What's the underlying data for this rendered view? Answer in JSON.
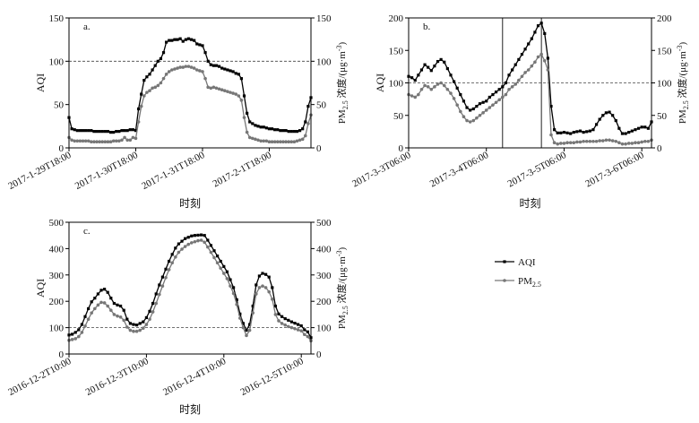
{
  "chart_data": [
    {
      "panel": "a.",
      "type": "line",
      "xlabel": "时刻",
      "ylabel_left": "AQI",
      "ylabel_right": "PM_2.5 浓度/(μg·m^-3)",
      "ylim": [
        0,
        150
      ],
      "yticks": [
        0,
        50,
        100,
        150
      ],
      "reference_line": 100,
      "x_tick_labels": [
        "2017-1-29T18:00",
        "2017-1-30T18:00",
        "2017-1-31T18:00",
        "2017-2-1T18:00"
      ],
      "x_tick_positions": [
        0,
        24,
        48,
        72
      ],
      "x_range": [
        0,
        87
      ],
      "series": [
        {
          "name": "AQI",
          "color": "#000000",
          "marker": "square",
          "x": [
            0,
            1,
            2,
            3,
            4,
            5,
            6,
            7,
            8,
            9,
            10,
            11,
            12,
            13,
            14,
            15,
            16,
            17,
            18,
            19,
            20,
            21,
            22,
            23,
            24,
            25,
            26,
            27,
            28,
            29,
            30,
            31,
            32,
            33,
            34,
            35,
            36,
            37,
            38,
            39,
            40,
            41,
            42,
            43,
            44,
            45,
            46,
            47,
            48,
            49,
            50,
            51,
            52,
            53,
            54,
            55,
            56,
            57,
            58,
            59,
            60,
            61,
            62,
            63,
            64,
            65,
            66,
            67,
            68,
            69,
            70,
            71,
            72,
            73,
            74,
            75,
            76,
            77,
            78,
            79,
            80,
            81,
            82,
            83,
            84,
            85,
            86,
            87
          ],
          "y": [
            35,
            22,
            21,
            20,
            20,
            20,
            20,
            20,
            20,
            19,
            19,
            19,
            19,
            19,
            19,
            18,
            18,
            19,
            19,
            20,
            20,
            20,
            21,
            21,
            20,
            45,
            62,
            78,
            82,
            85,
            90,
            95,
            100,
            103,
            110,
            122,
            124,
            124,
            125,
            125,
            126,
            123,
            125,
            126,
            125,
            124,
            120,
            119,
            118,
            110,
            100,
            96,
            95,
            95,
            94,
            92,
            91,
            90,
            89,
            88,
            86,
            85,
            80,
            60,
            40,
            30,
            28,
            26,
            25,
            24,
            24,
            23,
            22,
            22,
            21,
            21,
            20,
            20,
            20,
            19,
            19,
            19,
            19,
            20,
            22,
            30,
            48,
            58
          ]
        },
        {
          "name": "PM2.5",
          "color": "#777777",
          "marker": "circle",
          "x": [
            0,
            1,
            2,
            3,
            4,
            5,
            6,
            7,
            8,
            9,
            10,
            11,
            12,
            13,
            14,
            15,
            16,
            17,
            18,
            19,
            20,
            21,
            22,
            23,
            24,
            25,
            26,
            27,
            28,
            29,
            30,
            31,
            32,
            33,
            34,
            35,
            36,
            37,
            38,
            39,
            40,
            41,
            42,
            43,
            44,
            45,
            46,
            47,
            48,
            49,
            50,
            51,
            52,
            53,
            54,
            55,
            56,
            57,
            58,
            59,
            60,
            61,
            62,
            63,
            64,
            65,
            66,
            67,
            68,
            69,
            70,
            71,
            72,
            73,
            74,
            75,
            76,
            77,
            78,
            79,
            80,
            81,
            82,
            83,
            84,
            85,
            86,
            87
          ],
          "y": [
            12,
            9,
            8,
            8,
            8,
            8,
            8,
            8,
            7,
            7,
            7,
            7,
            7,
            7,
            7,
            7,
            8,
            8,
            8,
            9,
            12,
            9,
            9,
            12,
            11,
            30,
            48,
            60,
            64,
            66,
            69,
            70,
            72,
            75,
            80,
            85,
            88,
            90,
            91,
            92,
            93,
            93,
            94,
            94,
            93,
            92,
            90,
            89,
            88,
            80,
            70,
            69,
            70,
            69,
            68,
            67,
            66,
            65,
            64,
            63,
            62,
            60,
            55,
            35,
            18,
            12,
            11,
            10,
            9,
            8,
            8,
            8,
            7,
            7,
            7,
            7,
            7,
            7,
            7,
            7,
            7,
            7,
            8,
            9,
            10,
            14,
            28,
            38
          ]
        }
      ]
    },
    {
      "panel": "b.",
      "type": "line",
      "xlabel": "时刻",
      "ylabel_left": "AQI",
      "ylabel_right": "PM_2.5 浓度/(μg·m^-3)",
      "ylim": [
        0,
        200
      ],
      "yticks": [
        0,
        50,
        100,
        150,
        200
      ],
      "reference_line": 100,
      "x_tick_labels": [
        "2017-3-3T06:00",
        "2017-3-4T06:00",
        "2017-3-5T06:00",
        "2017-3-6T06:00"
      ],
      "x_tick_positions": [
        0,
        24,
        48,
        72
      ],
      "x_range": [
        0,
        75
      ],
      "highlight_box": {
        "x": [
          29,
          41
        ],
        "y": [
          0,
          200
        ]
      },
      "series": [
        {
          "name": "AQI",
          "color": "#000000",
          "marker": "square",
          "x": [
            0,
            1,
            2,
            3,
            4,
            5,
            6,
            7,
            8,
            9,
            10,
            11,
            12,
            13,
            14,
            15,
            16,
            17,
            18,
            19,
            20,
            21,
            22,
            23,
            24,
            25,
            26,
            27,
            28,
            29,
            30,
            31,
            32,
            33,
            34,
            35,
            36,
            37,
            38,
            39,
            40,
            41,
            42,
            43,
            44,
            45,
            46,
            47,
            48,
            49,
            50,
            51,
            52,
            53,
            54,
            55,
            56,
            57,
            58,
            59,
            60,
            61,
            62,
            63,
            64,
            65,
            66,
            67,
            68,
            69,
            70,
            71,
            72,
            73,
            74,
            75
          ],
          "y": [
            110,
            108,
            104,
            112,
            120,
            128,
            124,
            119,
            126,
            133,
            136,
            132,
            122,
            112,
            102,
            92,
            82,
            72,
            62,
            58,
            60,
            64,
            68,
            70,
            72,
            78,
            82,
            86,
            90,
            94,
            100,
            112,
            120,
            128,
            136,
            144,
            152,
            160,
            168,
            178,
            188,
            192,
            176,
            138,
            64,
            28,
            23,
            23,
            24,
            23,
            22,
            24,
            25,
            26,
            24,
            25,
            26,
            28,
            36,
            44,
            50,
            54,
            55,
            50,
            42,
            30,
            22,
            22,
            24,
            26,
            28,
            30,
            32,
            32,
            30,
            40
          ]
        },
        {
          "name": "PM2.5",
          "color": "#777777",
          "marker": "circle",
          "x": [
            0,
            1,
            2,
            3,
            4,
            5,
            6,
            7,
            8,
            9,
            10,
            11,
            12,
            13,
            14,
            15,
            16,
            17,
            18,
            19,
            20,
            21,
            22,
            23,
            24,
            25,
            26,
            27,
            28,
            29,
            30,
            31,
            32,
            33,
            34,
            35,
            36,
            37,
            38,
            39,
            40,
            41,
            42,
            43,
            44,
            45,
            46,
            47,
            48,
            49,
            50,
            51,
            52,
            53,
            54,
            55,
            56,
            57,
            58,
            59,
            60,
            61,
            62,
            63,
            64,
            65,
            66,
            67,
            68,
            69,
            70,
            71,
            72,
            73,
            74,
            75
          ],
          "y": [
            82,
            80,
            78,
            82,
            90,
            96,
            94,
            90,
            94,
            98,
            100,
            96,
            90,
            84,
            76,
            66,
            56,
            48,
            42,
            40,
            42,
            46,
            50,
            54,
            58,
            62,
            66,
            70,
            74,
            78,
            82,
            90,
            94,
            98,
            104,
            110,
            116,
            120,
            126,
            132,
            140,
            144,
            134,
            120,
            20,
            8,
            6,
            7,
            7,
            8,
            8,
            8,
            9,
            9,
            10,
            10,
            10,
            10,
            10,
            11,
            11,
            12,
            12,
            11,
            10,
            8,
            6,
            6,
            7,
            7,
            8,
            8,
            9,
            10,
            10,
            12
          ]
        }
      ]
    },
    {
      "panel": "c.",
      "type": "line",
      "xlabel": "时刻",
      "ylabel_left": "AQI",
      "ylabel_right": "PM_2.5 浓度/(μg·m^-3)",
      "ylim": [
        0,
        500
      ],
      "yticks": [
        0,
        100,
        200,
        300,
        400,
        500
      ],
      "reference_line": 100,
      "x_tick_labels": [
        "2016-12-2T10:00",
        "2016-12-3T10:00",
        "2016-12-4T10:00",
        "2016-12-5T10:00"
      ],
      "x_tick_positions": [
        0,
        24,
        48,
        72
      ],
      "x_range": [
        0,
        75
      ],
      "series": [
        {
          "name": "AQI",
          "color": "#000000",
          "marker": "square",
          "x": [
            0,
            1,
            2,
            3,
            4,
            5,
            6,
            7,
            8,
            9,
            10,
            11,
            12,
            13,
            14,
            15,
            16,
            17,
            18,
            19,
            20,
            21,
            22,
            23,
            24,
            25,
            26,
            27,
            28,
            29,
            30,
            31,
            32,
            33,
            34,
            35,
            36,
            37,
            38,
            39,
            40,
            41,
            42,
            43,
            44,
            45,
            46,
            47,
            48,
            49,
            50,
            51,
            52,
            53,
            54,
            55,
            56,
            57,
            58,
            59,
            60,
            61,
            62,
            63,
            64,
            65,
            66,
            67,
            68,
            69,
            70,
            71,
            72,
            73,
            74,
            75
          ],
          "y": [
            72,
            75,
            82,
            92,
            112,
            142,
            172,
            198,
            212,
            228,
            242,
            246,
            234,
            212,
            192,
            186,
            182,
            166,
            132,
            116,
            112,
            110,
            116,
            122,
            138,
            162,
            192,
            228,
            262,
            292,
            322,
            352,
            378,
            402,
            418,
            428,
            438,
            443,
            448,
            450,
            451,
            452,
            450,
            432,
            412,
            392,
            372,
            352,
            332,
            312,
            282,
            252,
            206,
            152,
            116,
            90,
            112,
            182,
            262,
            296,
            306,
            302,
            292,
            252,
            182,
            152,
            142,
            134,
            128,
            122,
            117,
            112,
            107,
            92,
            84,
            62
          ]
        },
        {
          "name": "PM2.5",
          "color": "#777777",
          "marker": "circle",
          "x": [
            0,
            1,
            2,
            3,
            4,
            5,
            6,
            7,
            8,
            9,
            10,
            11,
            12,
            13,
            14,
            15,
            16,
            17,
            18,
            19,
            20,
            21,
            22,
            23,
            24,
            25,
            26,
            27,
            28,
            29,
            30,
            31,
            32,
            33,
            34,
            35,
            36,
            37,
            38,
            39,
            40,
            41,
            42,
            43,
            44,
            45,
            46,
            47,
            48,
            49,
            50,
            51,
            52,
            53,
            54,
            55,
            56,
            57,
            58,
            59,
            60,
            61,
            62,
            63,
            64,
            65,
            66,
            67,
            68,
            69,
            70,
            71,
            72,
            73,
            74,
            75
          ],
          "y": [
            52,
            55,
            58,
            66,
            82,
            106,
            132,
            156,
            172,
            186,
            196,
            194,
            182,
            166,
            150,
            144,
            140,
            128,
            102,
            90,
            86,
            86,
            90,
            98,
            112,
            132,
            160,
            192,
            226,
            258,
            290,
            320,
            346,
            368,
            386,
            398,
            408,
            416,
            422,
            426,
            430,
            432,
            424,
            406,
            386,
            366,
            346,
            326,
            306,
            286,
            258,
            230,
            188,
            136,
            100,
            70,
            90,
            156,
            228,
            252,
            258,
            252,
            236,
            208,
            150,
            126,
            116,
            110,
            104,
            100,
            96,
            92,
            88,
            74,
            66,
            50
          ]
        }
      ]
    }
  ],
  "legend": {
    "items": [
      {
        "label": "AQI",
        "color": "#000000",
        "marker": "square"
      },
      {
        "label": "PM2.5",
        "label_main": "PM",
        "label_sub": "2.5",
        "color": "#777777",
        "marker": "circle"
      }
    ]
  }
}
